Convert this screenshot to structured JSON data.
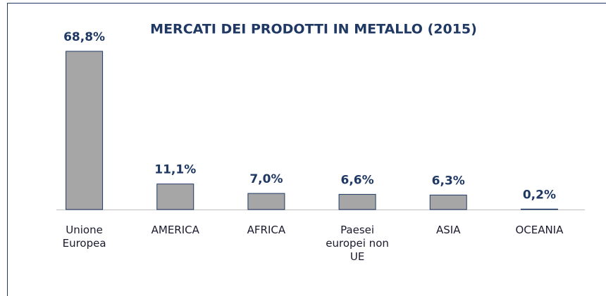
{
  "chart_data": {
    "type": "bar",
    "title": "MERCATI DEI PRODOTTI IN METALLO (2015)",
    "categories": [
      "Unione Europea",
      "AMERICA",
      "AFRICA",
      "Paesei europei non UE",
      "ASIA",
      "OCEANIA"
    ],
    "values": [
      68.8,
      11.1,
      7.0,
      6.6,
      6.3,
      0.2
    ],
    "value_labels": [
      "68,8%",
      "11,1%",
      "7,0%",
      "6,6%",
      "6,3%",
      "0,2%"
    ],
    "color": "#a6a6a6",
    "ylim": [
      0,
      70
    ]
  }
}
